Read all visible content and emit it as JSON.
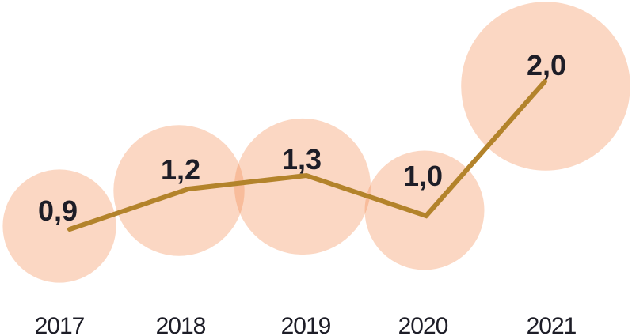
{
  "chart_data": {
    "type": "line",
    "variant": "line-with-area-proportional-bubbles",
    "title": "",
    "xlabel": "",
    "ylabel": "",
    "grid": false,
    "axes_visible": false,
    "categories": [
      "2017",
      "2018",
      "2019",
      "2020",
      "2021"
    ],
    "values": [
      0.9,
      1.2,
      1.3,
      1.0,
      2.0
    ],
    "value_labels": [
      "0,9",
      "1,2",
      "1,3",
      "1,0",
      "2,0"
    ],
    "decimal_separator": ",",
    "ylim": [
      0.9,
      2.0
    ],
    "colors": {
      "line": "#B3832B",
      "bubble_fill": "rgba(244,134,72,0.33)",
      "label_text": "#1D1D27",
      "background": "#FFFFFF"
    }
  }
}
